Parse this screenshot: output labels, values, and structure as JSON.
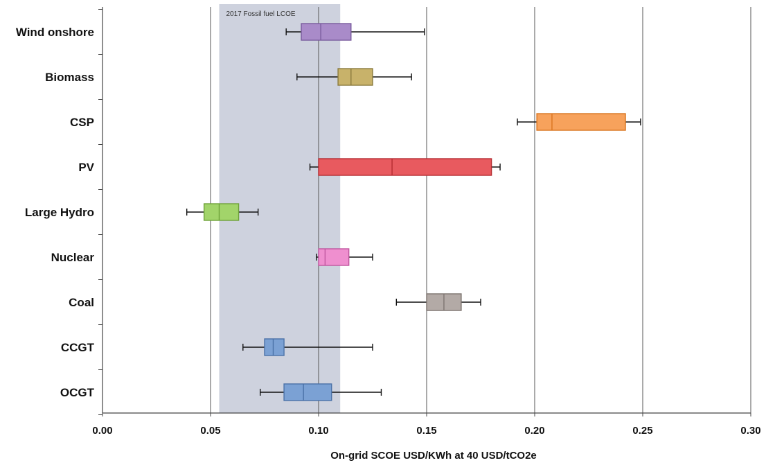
{
  "chart_data": {
    "type": "boxplot",
    "title": "",
    "xlabel": "On-grid SCOE USD/KWh at 40 USD/tCO2e",
    "ylabel": "",
    "xlim": [
      0.0,
      0.3
    ],
    "xticks": [
      "0.00",
      "0.05",
      "0.10",
      "0.15",
      "0.20",
      "0.25",
      "0.30"
    ],
    "grid": "vertical",
    "band": {
      "label": "2017 Fossil fuel LCOE",
      "from": 0.054,
      "to": 0.11,
      "color": "#c5cad8"
    },
    "categories": [
      "Wind onshore",
      "Biomass",
      "CSP",
      "PV",
      "Large Hydro",
      "Nuclear",
      "Coal",
      "CCGT",
      "OCGT"
    ],
    "boxes": [
      {
        "name": "Wind onshore",
        "min": 0.085,
        "q1": 0.092,
        "median": 0.101,
        "q3": 0.115,
        "max": 0.149,
        "color": "#a98bc9",
        "stroke": "#7a5c9e"
      },
      {
        "name": "Biomass",
        "min": 0.09,
        "q1": 0.109,
        "median": 0.115,
        "q3": 0.125,
        "max": 0.143,
        "color": "#c8b26a",
        "stroke": "#8a7a3e"
      },
      {
        "name": "CSP",
        "min": 0.192,
        "q1": 0.201,
        "median": 0.208,
        "q3": 0.242,
        "max": 0.249,
        "color": "#f7a25c",
        "stroke": "#d9741f"
      },
      {
        "name": "PV",
        "min": 0.096,
        "q1": 0.1,
        "median": 0.134,
        "q3": 0.18,
        "max": 0.184,
        "color": "#e85a5f",
        "stroke": "#b52b30"
      },
      {
        "name": "Large Hydro",
        "min": 0.039,
        "q1": 0.047,
        "median": 0.054,
        "q3": 0.063,
        "max": 0.072,
        "color": "#a2d46a",
        "stroke": "#6fa23a"
      },
      {
        "name": "Nuclear",
        "min": 0.099,
        "q1": 0.1,
        "median": 0.103,
        "q3": 0.114,
        "max": 0.125,
        "color": "#ef8fcf",
        "stroke": "#c0569f"
      },
      {
        "name": "Coal",
        "min": 0.136,
        "q1": 0.15,
        "median": 0.158,
        "q3": 0.166,
        "max": 0.175,
        "color": "#b3aaa6",
        "stroke": "#7d7470"
      },
      {
        "name": "CCGT",
        "min": 0.065,
        "q1": 0.075,
        "median": 0.079,
        "q3": 0.084,
        "max": 0.125,
        "color": "#7ba1d4",
        "stroke": "#4b72a8"
      },
      {
        "name": "OCGT",
        "min": 0.073,
        "q1": 0.084,
        "median": 0.093,
        "q3": 0.106,
        "max": 0.129,
        "color": "#7ba1d4",
        "stroke": "#4b72a8"
      }
    ]
  }
}
